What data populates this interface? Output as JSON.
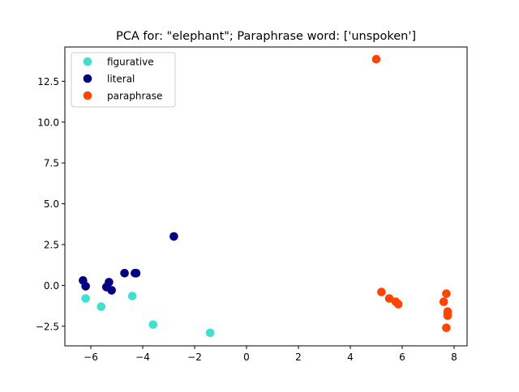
{
  "chart_data": {
    "type": "scatter",
    "title": "PCA for: \"elephant\"; Paraphrase word: ['unspoken']",
    "xlabel": "",
    "ylabel": "",
    "xlim": [
      -7.0,
      8.5
    ],
    "ylim": [
      -3.7,
      14.6
    ],
    "xticks": [
      -6,
      -4,
      -2,
      0,
      2,
      4,
      6,
      8
    ],
    "xtick_labels": [
      "−6",
      "−4",
      "−2",
      "0",
      "2",
      "4",
      "6",
      "8"
    ],
    "yticks": [
      -2.5,
      0.0,
      2.5,
      5.0,
      7.5,
      10.0,
      12.5
    ],
    "ytick_labels": [
      "−2.5",
      "0.0",
      "2.5",
      "5.0",
      "7.5",
      "10.0",
      "12.5"
    ],
    "grid": false,
    "legend_position": "top-left",
    "series": [
      {
        "name": "figurative",
        "color": "#40e0d0",
        "points": [
          [
            -6.2,
            -0.8
          ],
          [
            -5.6,
            -1.3
          ],
          [
            -4.4,
            -0.65
          ],
          [
            -3.6,
            -2.4
          ],
          [
            -1.4,
            -2.9
          ]
        ]
      },
      {
        "name": "literal",
        "color": "#000080",
        "points": [
          [
            -6.3,
            0.3
          ],
          [
            -6.2,
            -0.05
          ],
          [
            -5.4,
            -0.1
          ],
          [
            -5.3,
            0.2
          ],
          [
            -5.2,
            -0.3
          ],
          [
            -4.7,
            0.75
          ],
          [
            -4.3,
            0.75
          ],
          [
            -4.25,
            0.75
          ],
          [
            -2.8,
            3.0
          ]
        ]
      },
      {
        "name": "paraphrase",
        "color": "#ff4500",
        "points": [
          [
            5.0,
            13.85
          ],
          [
            5.2,
            -0.4
          ],
          [
            5.5,
            -0.8
          ],
          [
            5.75,
            -1.0
          ],
          [
            5.85,
            -1.15
          ],
          [
            7.6,
            -1.0
          ],
          [
            7.7,
            -0.5
          ],
          [
            7.75,
            -1.6
          ],
          [
            7.75,
            -1.75
          ],
          [
            7.75,
            -1.85
          ],
          [
            7.7,
            -2.6
          ]
        ]
      }
    ]
  }
}
